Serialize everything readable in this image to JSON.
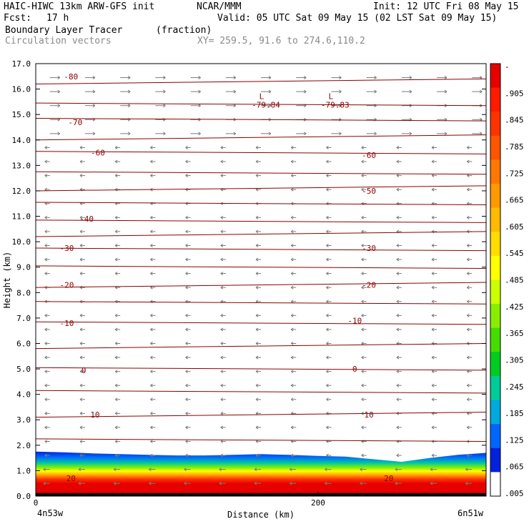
{
  "header": {
    "model": "HAIC-HIWC 13km ARW-GFS init",
    "org": "NCAR/MMM",
    "init": "Init: 12 UTC Fri 08 May 15",
    "fcst_label": "Fcst:",
    "fcst_value": "17 h",
    "valid": "Valid: 05 UTC Sat 09 May 15 (02 LST Sat 09 May 15)",
    "field": "Boundary Layer Tracer",
    "field_units": "(fraction)",
    "vectors": "Circulation vectors",
    "xy": "XY= 259.5, 91.6 to 274.6,110.2"
  },
  "chart_data": {
    "type": "heatmap",
    "title": "Boundary Layer Tracer",
    "xlabel": "Distance (km)",
    "ylabel": "Height (km)",
    "x_start_label": "4n53w",
    "x_end_label": "6n51w",
    "xlim": [
      0,
      319
    ],
    "ylim": [
      0,
      17
    ],
    "x_ticks": [
      0,
      200
    ],
    "y_ticks": [
      "0.0",
      "1.0",
      "2.0",
      "3.0",
      "4.0",
      "5.0",
      "6.0",
      "7.0",
      "8.0",
      "9.0",
      "10.0",
      "11.0",
      "12.0",
      "13.0",
      "14.0",
      "15.0",
      "16.0",
      "17.0"
    ],
    "colorbar": {
      "labels": [
        "-",
        ".905",
        ".845",
        ".785",
        ".725",
        ".665",
        ".605",
        ".545",
        ".485",
        ".425",
        ".365",
        ".305",
        ".245",
        ".185",
        ".125",
        ".065",
        ".005"
      ],
      "colors": [
        "#e60000",
        "#ff1a00",
        "#ff3300",
        "#ff5500",
        "#ff7700",
        "#ff9900",
        "#ffbb00",
        "#ffdd00",
        "#ffff00",
        "#ccff00",
        "#88ee00",
        "#44dd00",
        "#00cc22",
        "#00cc99",
        "#00aadd",
        "#0066ff",
        "#0022dd",
        "#ffffff"
      ]
    },
    "temperature_contours": {
      "labels": [
        {
          "text": "-80",
          "x": 25,
          "y": 16.5
        },
        {
          "text": "-70",
          "x": 28,
          "y": 14.7
        },
        {
          "text": "-60",
          "x": 44,
          "y": 13.5
        },
        {
          "text": "-60",
          "x": 236,
          "y": 13.4
        },
        {
          "text": "-50",
          "x": 236,
          "y": 12.0
        },
        {
          "text": "-40",
          "x": 36,
          "y": 10.9
        },
        {
          "text": "-30",
          "x": 22,
          "y": 9.75
        },
        {
          "text": "-30",
          "x": 236,
          "y": 9.75
        },
        {
          "text": "-20",
          "x": 22,
          "y": 8.3
        },
        {
          "text": "-20",
          "x": 236,
          "y": 8.3
        },
        {
          "text": "-10",
          "x": 22,
          "y": 6.8
        },
        {
          "text": "-10",
          "x": 226,
          "y": 6.9
        },
        {
          "text": "0",
          "x": 34,
          "y": 4.95
        },
        {
          "text": "0",
          "x": 226,
          "y": 5.0
        },
        {
          "text": "10",
          "x": 42,
          "y": 3.2
        },
        {
          "text": "10",
          "x": 236,
          "y": 3.2
        },
        {
          "text": "20",
          "x": 25,
          "y": 0.7
        },
        {
          "text": "20",
          "x": 250,
          "y": 0.7
        }
      ],
      "lows": [
        {
          "symbol": "L",
          "value": "-79.84",
          "x": 160,
          "y": 16.0
        },
        {
          "symbol": "L",
          "value": "-79.83",
          "x": 209,
          "y": 16.0
        }
      ],
      "levels": [
        16.3,
        15.4,
        14.8,
        14.1,
        13.5,
        12.7,
        12.1,
        11.5,
        10.8,
        10.3,
        9.7,
        9.0,
        8.3,
        7.6,
        6.8,
        5.9,
        5.0,
        4.1,
        3.2,
        2.2
      ]
    },
    "boundary_layer_top_km": [
      1.75,
      1.72,
      1.68,
      1.65,
      1.62,
      1.6,
      1.6,
      1.62,
      1.65,
      1.62,
      1.58,
      1.55,
      1.45,
      1.35,
      1.5,
      1.62,
      1.7
    ]
  }
}
